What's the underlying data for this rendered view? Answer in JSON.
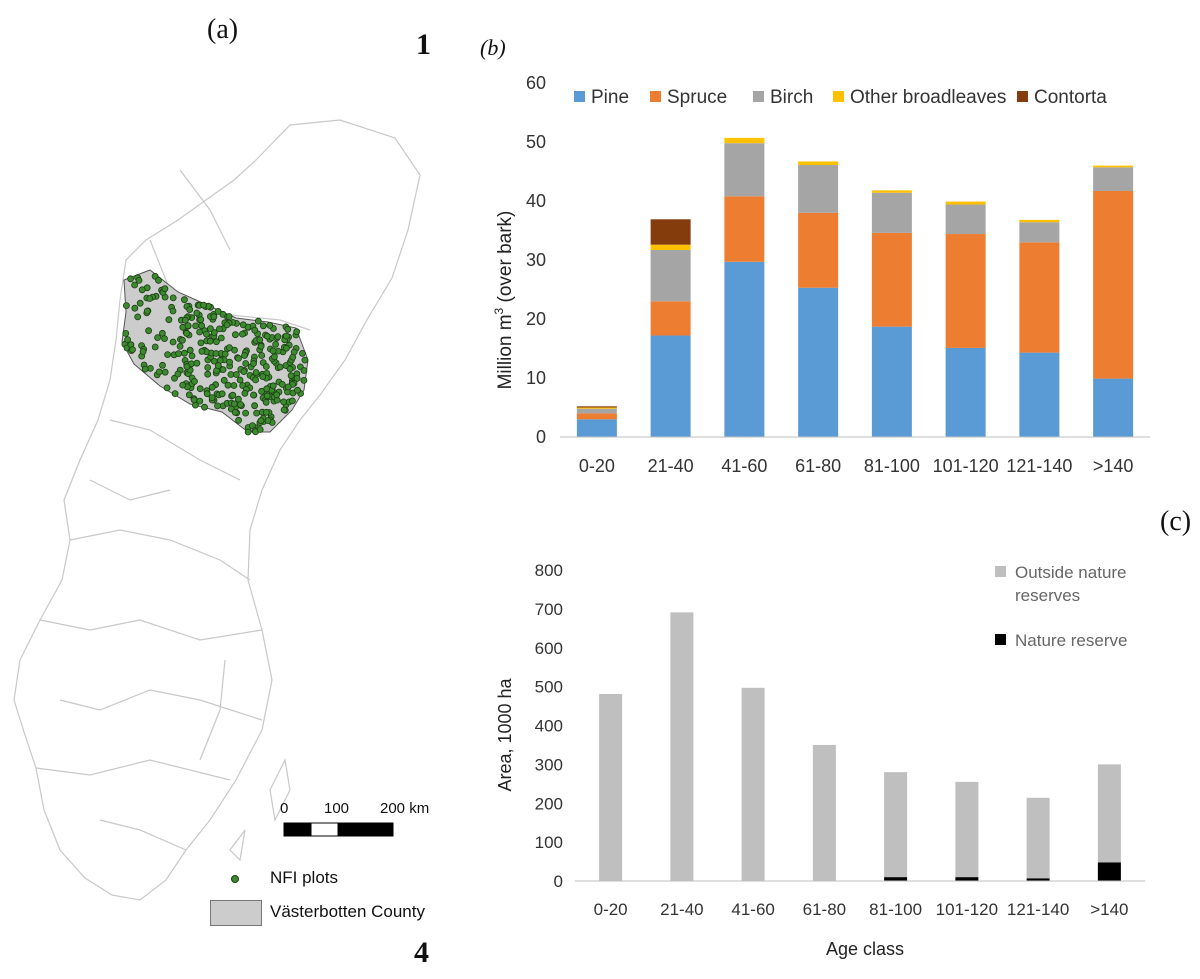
{
  "labels": {
    "panel_a": "(a)",
    "panel_b": "(b)",
    "panel_c": "(c)",
    "num_top": "1",
    "num_bottom": "4"
  },
  "map": {
    "scale_labels": [
      "0",
      "100",
      "200 km"
    ],
    "legend": [
      {
        "label": "NFI plots",
        "symbol": "green-dot",
        "color": "#3c8a2e"
      },
      {
        "label": "Västerbotten County",
        "symbol": "grey-box",
        "color": "#cccccc"
      }
    ]
  },
  "chart_data": [
    {
      "id": "b",
      "type": "bar",
      "stacked": true,
      "title": "",
      "ylabel": "Million m³ (over bark)",
      "ylabel_main": "Million m",
      "ylabel_sup": "3",
      "ylabel_rest": " (over bark)",
      "xlabel": "",
      "ylim": [
        0,
        60
      ],
      "yticks": [
        0,
        10,
        20,
        30,
        40,
        50,
        60
      ],
      "legend_position": "top",
      "categories": [
        "0-20",
        "21-40",
        "41-60",
        "61-80",
        "81-100",
        "101-120",
        "121-140",
        ">140"
      ],
      "series": [
        {
          "name": "Pine",
          "color": "#5b9bd5",
          "values": [
            3,
            17.2,
            29.7,
            25.3,
            18.7,
            15.1,
            14.3,
            9.9
          ]
        },
        {
          "name": "Spruce",
          "color": "#ed7d31",
          "values": [
            1,
            5.8,
            11.1,
            12.7,
            15.9,
            19.3,
            18.7,
            31.8
          ]
        },
        {
          "name": "Birch",
          "color": "#a5a5a5",
          "values": [
            0.8,
            8.7,
            9,
            8.1,
            6.8,
            5,
            3.4,
            4
          ]
        },
        {
          "name": "Other broadleaves",
          "color": "#ffc000",
          "values": [
            0.2,
            0.9,
            0.9,
            0.6,
            0.4,
            0.5,
            0.4,
            0.3
          ]
        },
        {
          "name": "Contorta",
          "color": "#843c0c",
          "values": [
            0.2,
            4.3,
            0,
            0,
            0,
            0,
            0,
            0
          ]
        }
      ]
    },
    {
      "id": "c",
      "type": "bar",
      "stacked": true,
      "title": "",
      "ylabel": "Area, 1000 ha",
      "xlabel": "Age class",
      "ylim": [
        0,
        800
      ],
      "yticks": [
        0,
        100,
        200,
        300,
        400,
        500,
        600,
        700,
        800
      ],
      "legend_position": "top-right",
      "categories": [
        "0-20",
        "21-40",
        "41-60",
        "61-80",
        "81-100",
        "101-120",
        "121-140",
        ">140"
      ],
      "series": [
        {
          "name": "Nature reserve",
          "color": "#000000",
          "values": [
            0,
            0,
            0,
            0,
            10,
            10,
            7,
            48
          ]
        },
        {
          "name": "Outside nature reserves",
          "color": "#bfbfbf",
          "values": [
            481,
            691,
            497,
            350,
            270,
            245,
            207,
            252
          ]
        }
      ],
      "legend": [
        {
          "label_line1": "Outside nature",
          "label_line2": "reserves",
          "color": "#bfbfbf"
        },
        {
          "label_line1": "Nature reserve",
          "label_line2": "",
          "color": "#000000"
        }
      ]
    }
  ]
}
